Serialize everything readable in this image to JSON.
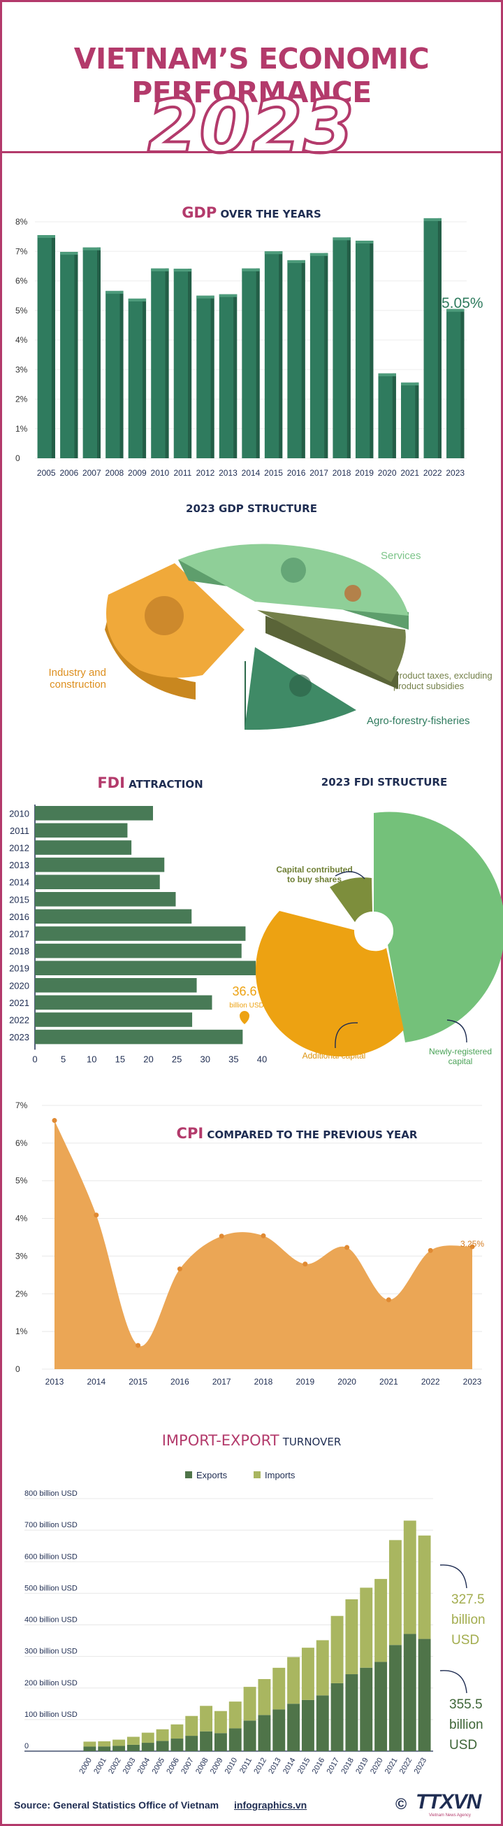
{
  "header": {
    "title": "VIETNAM’S ECONOMIC PERFORMANCE",
    "year": "2023"
  },
  "colors": {
    "accent": "#b33a6b",
    "navy": "#1f2d52",
    "gdp_bar": "#2f7b5e",
    "services": "#8fcf98",
    "industry": "#f0a93a",
    "agri": "#3f8a66",
    "taxes": "#74804a",
    "fdi_bar": "#487a56",
    "fdi_new": "#74c17a",
    "fdi_add": "#eda212",
    "fdi_shares": "#7d8e3c",
    "cpi_area": "#eba655",
    "exports": "#4f7449",
    "imports": "#a9b660"
  },
  "chart_data": [
    {
      "id": "gdp",
      "type": "bar",
      "title_highlight": "GDP",
      "title_rest": "OVER THE YEARS",
      "categories": [
        "2005",
        "2006",
        "2007",
        "2008",
        "2009",
        "2010",
        "2011",
        "2012",
        "2013",
        "2014",
        "2015",
        "2016",
        "2017",
        "2018",
        "2019",
        "2020",
        "2021",
        "2022",
        "2023"
      ],
      "values": [
        7.55,
        6.98,
        7.13,
        5.66,
        5.4,
        6.42,
        6.41,
        5.5,
        5.55,
        6.42,
        7.0,
        6.7,
        6.94,
        7.47,
        7.36,
        2.87,
        2.56,
        8.12,
        5.05
      ],
      "ylim": [
        0,
        8
      ],
      "yticks": [
        "0",
        "1%",
        "2%",
        "3%",
        "4%",
        "5%",
        "6%",
        "7%",
        "8%"
      ],
      "annotation": "5.05%"
    },
    {
      "id": "gdp_structure",
      "type": "pie",
      "title": "2023 GDP STRUCTURE",
      "slices": [
        {
          "label": "Services",
          "value": 42.5
        },
        {
          "label": "Product taxes, excluding product subsidies",
          "value": 8.5
        },
        {
          "label": "Agro-forestry-fisheries",
          "value": 11.96
        },
        {
          "label": "Industry and construction",
          "value": 37.04
        }
      ]
    },
    {
      "id": "fdi",
      "type": "bar",
      "orientation": "horizontal",
      "title_highlight": "FDI",
      "title_rest": "ATTRACTION",
      "categories": [
        "2010",
        "2011",
        "2012",
        "2013",
        "2014",
        "2015",
        "2016",
        "2017",
        "2018",
        "2019",
        "2020",
        "2021",
        "2022",
        "2023"
      ],
      "values": [
        20.8,
        16.3,
        17.0,
        22.8,
        22.0,
        24.8,
        27.6,
        37.1,
        36.4,
        38.9,
        28.5,
        31.2,
        27.7,
        36.6
      ],
      "xlim": [
        0,
        40
      ],
      "xticks": [
        "0",
        "5",
        "10",
        "15",
        "20",
        "25",
        "30",
        "35",
        "40"
      ],
      "annotation_value": "36.6",
      "annotation_unit": "billion USD"
    },
    {
      "id": "fdi_structure",
      "type": "pie",
      "title": "2023 FDI STRUCTURE",
      "slices": [
        {
          "label": "Newly-registered capital",
          "value": 55.3
        },
        {
          "label": "Additional capital",
          "value": 31.8
        },
        {
          "label": "Capital contributed to buy shares",
          "value": 12.9
        }
      ]
    },
    {
      "id": "cpi",
      "type": "area",
      "title_highlight": "CPI",
      "title_rest": "COMPARED TO THE PREVIOUS YEAR",
      "x": [
        "2013",
        "2014",
        "2015",
        "2016",
        "2017",
        "2018",
        "2019",
        "2020",
        "2021",
        "2022",
        "2023"
      ],
      "values": [
        6.6,
        4.09,
        0.63,
        2.66,
        3.53,
        3.54,
        2.79,
        3.23,
        1.84,
        3.15,
        3.25
      ],
      "ylim": [
        0,
        7
      ],
      "yticks": [
        "0",
        "1%",
        "2%",
        "3%",
        "4%",
        "5%",
        "6%",
        "7%"
      ],
      "annotation": "3.25%"
    },
    {
      "id": "trade",
      "type": "bar",
      "stacked": true,
      "title_highlight": "IMPORT-EXPORT",
      "title_rest": "TURNOVER",
      "legend": [
        "Exports",
        "Imports"
      ],
      "categories": [
        "2000",
        "2001",
        "2002",
        "2003",
        "2004",
        "2005",
        "2006",
        "2007",
        "2008",
        "2009",
        "2010",
        "2011",
        "2012",
        "2013",
        "2014",
        "2015",
        "2016",
        "2017",
        "2018",
        "2019",
        "2020",
        "2021",
        "2022",
        "2023"
      ],
      "series": [
        {
          "name": "Exports",
          "values": [
            14.5,
            15.0,
            16.7,
            20.1,
            26.5,
            32.4,
            39.8,
            48.6,
            62.7,
            57.1,
            72.2,
            96.9,
            114.5,
            132.0,
            150.2,
            162.0,
            176.6,
            215.1,
            243.7,
            264.3,
            282.7,
            336.3,
            371.3,
            355.5
          ]
        },
        {
          "name": "Imports",
          "values": [
            15.6,
            16.2,
            19.7,
            25.3,
            32.0,
            36.8,
            44.9,
            62.8,
            80.7,
            69.9,
            84.8,
            106.7,
            113.8,
            132.0,
            147.8,
            165.6,
            174.8,
            213.2,
            237.2,
            253.4,
            262.7,
            332.2,
            358.9,
            327.5
          ]
        }
      ],
      "ylim": [
        0,
        800
      ],
      "yticks": [
        "0",
        "100 billion USD",
        "200 billion USD",
        "300 billion USD",
        "400 billion USD",
        "500 billion USD",
        "600 billion USD",
        "700 billion USD",
        "800 billion USD"
      ],
      "annotation_imports": [
        "327.5",
        "billion",
        "USD"
      ],
      "annotation_exports": [
        "355.5",
        "billion",
        "USD"
      ]
    }
  ],
  "footer": {
    "source": "Source: General Statistics Office of Vietnam",
    "site": "infographics.vn",
    "brand": "TTXVN",
    "brand_sub": "Vietnam News Agency",
    "copyright": "©"
  }
}
